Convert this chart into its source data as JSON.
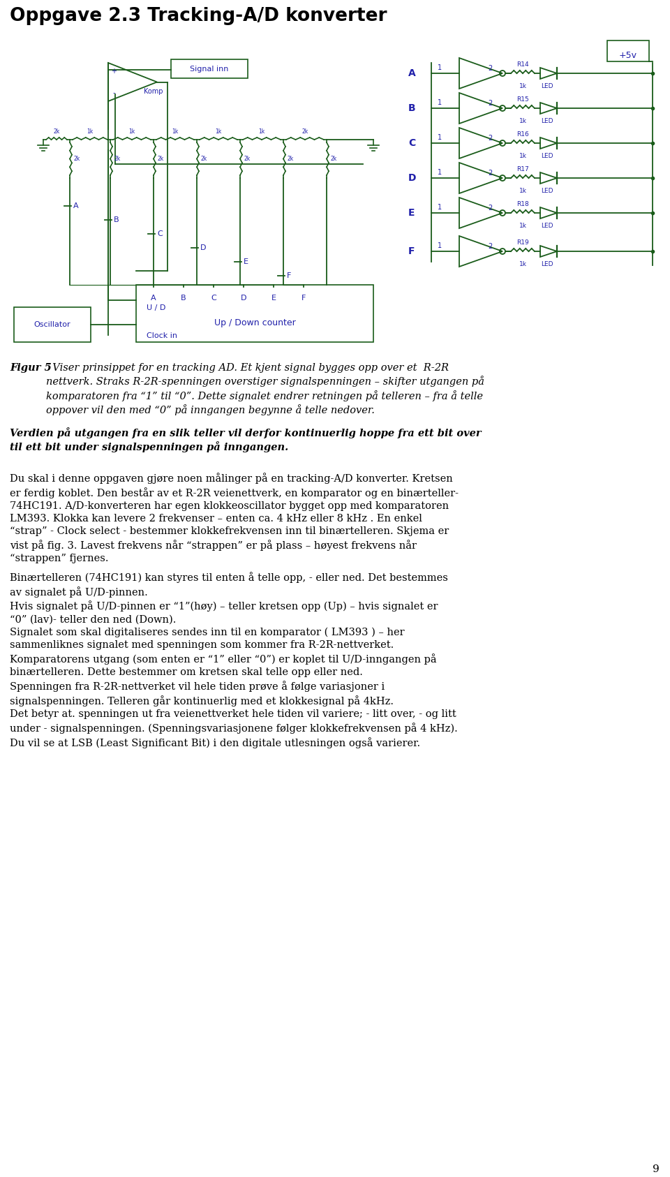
{
  "title": "Oppgave 2.3 Tracking-A/D konverter",
  "page_number": "9",
  "fig_caption_bold": "Figur 5",
  "fig_caption_italic": "  Viser prinsippet for en tracking AD. Et kjent signal bygges opp over et  R-2R nettverk. Straks R-2R-spenningen overstiger signalspenningen – skifter utgangen på komparatoren fra «1» til «0». Dette signalet endrer retningen på telleren – fra å telle oppover vil den med «0» på inngangen begynne å telle nedover.",
  "bold_text": "Verdien på utgangen fra en slik teller vil derfor kontinuerlig hoppe fra ett bit over til ett bit under signalspenningen på inngangen.",
  "para1": "Du skal i denne oppgaven gjøre noen målinger på en tracking-A/D konverter. Kretsen er ferdig koblet. Den består av et R-2R veienettverk, en komparator og en binærteller-74HC191. A/D-konverteren har egen klokkeoscillator bygget opp med komparatoren LM393. Klokka kan levere 2 frekvenser – enten ca. 4 kHz eller 8 kHz . En enkel “strap” - Clock select - bestemmer klokkefrekvensen inn til binærtelleren. Skjema er vist på fig. 3. Lavest frekvens når “strappen” er på plass – høyest frekvens når “strappen” fjernes.",
  "para2": "Binærtelleren (74HC191) kan styres til enten å telle opp, - eller ned. Det bestemmes av signalet på U/D-pinnen.\nHvis signalet på U/D-pinnen er “1”(høy) – teller kretsen opp (Up) – hvis signalet er “0” (lav)- teller den ned (Down).\nSignalet som skal digitaliseres sendes inn til en komparator ( LM393 ) – her sammenliknes signalet med spenningen som kommer fra R-2R-nettverket.\nKomparatorens utgang (som enten er “1” eller “0”) er koplet til U/D-inngangen på binærtelleren. Dette bestemmer om kretsen skal telle opp eller ned.\nSpenningen fra R-2R-nettverket vil hele tiden prøve å følge variasjoner i signalspenningen. Telleren går kontinuerlig med et klokkesignal på 4kHz.\nDet betyr at. spenningen ut fra veienettverket hele tiden vil variere; - litt over, - og litt under - signalspenningen. (Spenningsvariasjonene følger klokkefrekvensen på 4 kHz).\nDu vil se at LSB (Least Significant Bit) i den digitale utlesningen også varierer.",
  "gc": "#1a5c1a",
  "bc": "#2020aa",
  "tc": "#000000",
  "bg": "#ffffff"
}
